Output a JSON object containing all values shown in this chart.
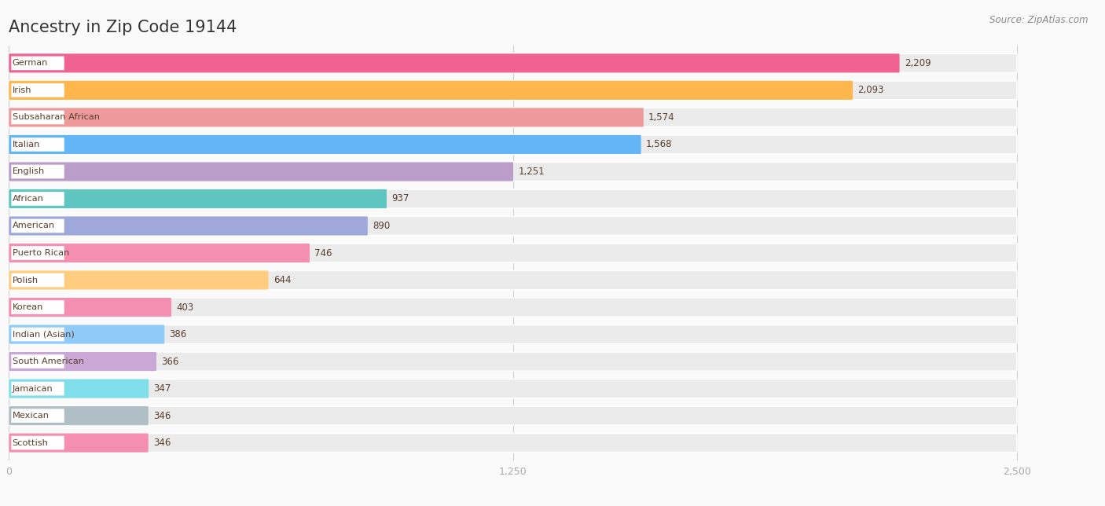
{
  "title": "Ancestry in Zip Code 19144",
  "source": "Source: ZipAtlas.com",
  "categories": [
    "German",
    "Irish",
    "Subsaharan African",
    "Italian",
    "English",
    "African",
    "American",
    "Puerto Rican",
    "Polish",
    "Korean",
    "Indian (Asian)",
    "South American",
    "Jamaican",
    "Mexican",
    "Scottish"
  ],
  "values": [
    2209,
    2093,
    1574,
    1568,
    1251,
    937,
    890,
    746,
    644,
    403,
    386,
    366,
    347,
    346,
    346
  ],
  "bar_colors": [
    "#F06292",
    "#FFB74D",
    "#EF9A9A",
    "#64B5F6",
    "#BA9DC8",
    "#5EC5C0",
    "#9FA8DA",
    "#F48FB1",
    "#FFCC80",
    "#F48FB1",
    "#90CAF9",
    "#C9A8D6",
    "#80DEEA",
    "#B0BEC5",
    "#F48FB1"
  ],
  "background_color": "#fafafa",
  "bar_bg_color": "#ebebeb",
  "xlim_max": 2500,
  "xticks": [
    0,
    1250,
    2500
  ],
  "title_color": "#333333",
  "label_color": "#5a3e2b",
  "value_color": "#5a3e2b",
  "source_color": "#888888"
}
